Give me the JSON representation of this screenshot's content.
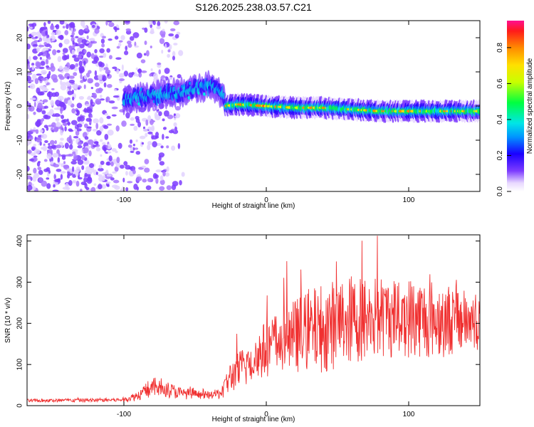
{
  "title": "S126.2025.238.03.57.C21",
  "chart_data": [
    {
      "type": "heatmap",
      "xlabel": "Height of straight line (km)",
      "ylabel": "Frequency (Hz)",
      "xlim": [
        -168,
        150
      ],
      "ylim": [
        -25,
        25
      ],
      "xticks": [
        -100,
        0,
        100
      ],
      "yticks": [
        -20,
        -10,
        0,
        10,
        20
      ],
      "colorbar": {
        "label": "Normalized spectral amplitude",
        "range": [
          0,
          0.95
        ],
        "ticks": [
          "0.0",
          "0.2",
          "0.4",
          "0.6",
          "0.8"
        ]
      },
      "ridge_frequency_hz": {
        "x": [
          -100,
          -80,
          -60,
          -50,
          -40,
          -32,
          -28,
          -20,
          0,
          20,
          40,
          60,
          80,
          100,
          120,
          150
        ],
        "y": [
          2,
          3,
          4,
          5,
          6,
          4,
          0,
          0.5,
          0,
          -0.5,
          -0.5,
          -1,
          -1.5,
          -1.5,
          -1.5,
          -1.5
        ]
      }
    },
    {
      "type": "line",
      "xlabel": "Height of straight line (km)",
      "ylabel": "SNR (10 * v/v)",
      "xlim": [
        -168,
        150
      ],
      "ylim": [
        0,
        415
      ],
      "xticks": [
        -100,
        0,
        100
      ],
      "yticks": [
        0,
        100,
        200,
        300,
        400
      ],
      "color": "#f03030",
      "envelope": {
        "x": [
          -168,
          -100,
          -90,
          -80,
          -70,
          -60,
          -40,
          -32,
          -25,
          -10,
          0,
          20,
          40,
          60,
          80,
          100,
          120,
          150
        ],
        "mean": [
          12,
          14,
          25,
          45,
          40,
          30,
          25,
          30,
          70,
          110,
          140,
          170,
          190,
          210,
          215,
          215,
          210,
          205
        ],
        "spread": [
          4,
          5,
          12,
          25,
          20,
          15,
          8,
          15,
          40,
          60,
          70,
          90,
          110,
          110,
          100,
          100,
          95,
          70
        ]
      }
    }
  ]
}
